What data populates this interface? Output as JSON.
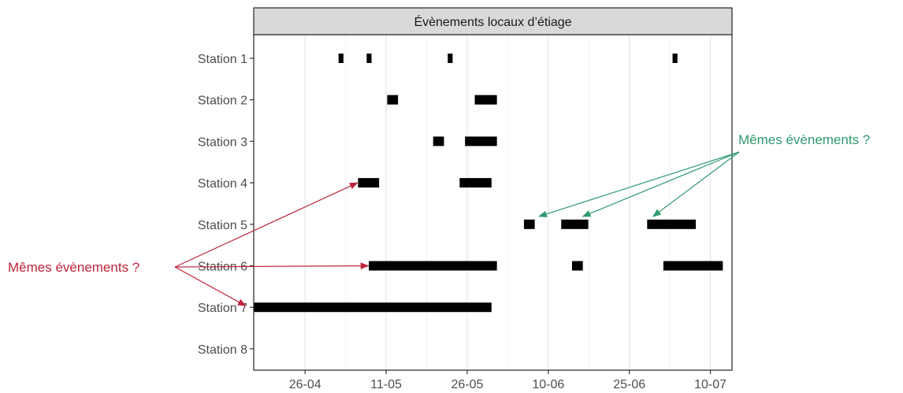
{
  "chart_data": {
    "type": "gantt",
    "facet_title": "Évènements locaux d’étiage",
    "x_tick_labels": [
      "26-04",
      "11-05",
      "26-05",
      "10-06",
      "25-06",
      "10-07"
    ],
    "x_tick_days": [
      0,
      15,
      30,
      45,
      60,
      75
    ],
    "x_range_days": [
      -9.5,
      79
    ],
    "x_minor_gridlines_days": [
      7.5,
      22.5,
      37.5,
      52.5,
      67.5
    ],
    "stations": [
      "Station 1",
      "Station 2",
      "Station 3",
      "Station 4",
      "Station 5",
      "Station 6",
      "Station 7",
      "Station 8"
    ],
    "events": [
      {
        "station": "Station 1",
        "start": 6.2,
        "end": 7.1
      },
      {
        "station": "Station 1",
        "start": 11.4,
        "end": 12.3
      },
      {
        "station": "Station 1",
        "start": 26.4,
        "end": 27.3
      },
      {
        "station": "Station 1",
        "start": 68.0,
        "end": 68.9
      },
      {
        "station": "Station 2",
        "start": 15.2,
        "end": 17.2
      },
      {
        "station": "Station 2",
        "start": 31.4,
        "end": 35.5
      },
      {
        "station": "Station 3",
        "start": 23.7,
        "end": 25.7
      },
      {
        "station": "Station 3",
        "start": 29.6,
        "end": 35.5
      },
      {
        "station": "Station 4",
        "start": 9.8,
        "end": 13.7
      },
      {
        "station": "Station 4",
        "start": 28.6,
        "end": 34.5
      },
      {
        "station": "Station 5",
        "start": 40.5,
        "end": 42.5
      },
      {
        "station": "Station 5",
        "start": 47.4,
        "end": 52.4
      },
      {
        "station": "Station 5",
        "start": 63.3,
        "end": 72.3
      },
      {
        "station": "Station 6",
        "start": 11.8,
        "end": 35.5
      },
      {
        "station": "Station 6",
        "start": 49.4,
        "end": 51.4
      },
      {
        "station": "Station 6",
        "start": 66.3,
        "end": 77.3
      },
      {
        "station": "Station 7",
        "start": -11.2,
        "end": 34.5
      }
    ],
    "grid": true,
    "bar_color": "#000000"
  },
  "annotations": {
    "left": {
      "text": "Mêmes évènements ?",
      "color": "#c0243a",
      "targets": [
        {
          "station": "Station 4",
          "day": 9.7
        },
        {
          "station": "Station 6",
          "day": 11.7
        },
        {
          "station": "Station 7",
          "day": -11.0
        }
      ]
    },
    "right": {
      "text": "Mêmes évènements ?",
      "color": "#2e9a6f",
      "targets": [
        {
          "station": "Station 5",
          "day": 43.3
        },
        {
          "station": "Station 5",
          "day": 51.4
        },
        {
          "station": "Station 5",
          "day": 64.4
        }
      ]
    }
  }
}
